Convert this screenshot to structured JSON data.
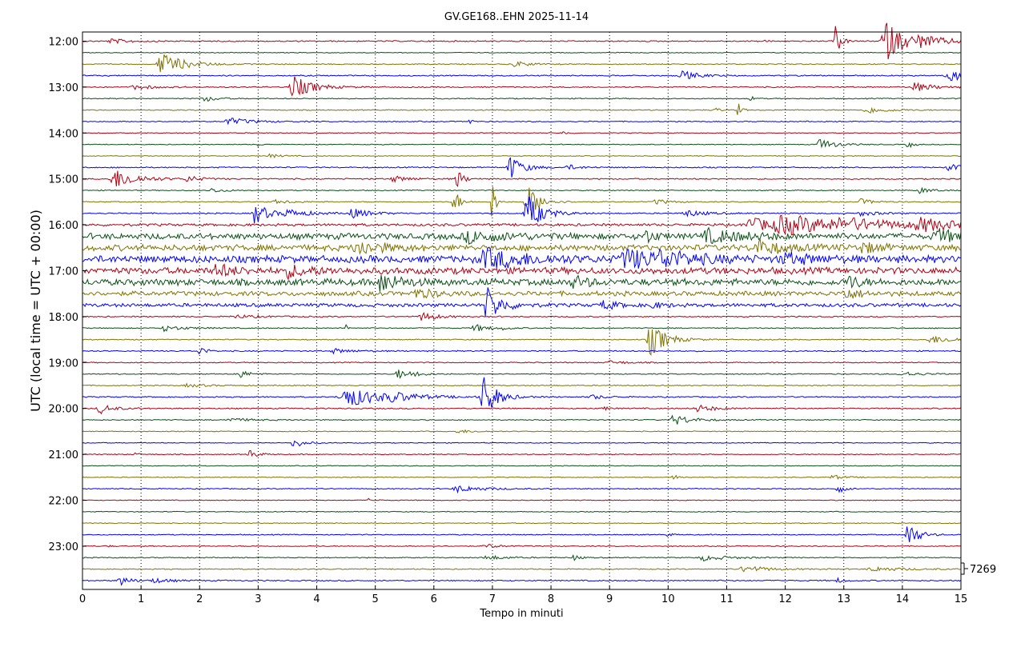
{
  "chart_data": {
    "type": "line",
    "title": "GV.GE168..EHN 2025-11-14",
    "xlabel": "Tempo in minuti",
    "ylabel": "UTC (local time = UTC + 00:00)",
    "xlim": [
      0,
      15
    ],
    "x_ticks": [
      "0",
      "1",
      "2",
      "3",
      "4",
      "5",
      "6",
      "7",
      "8",
      "9",
      "10",
      "11",
      "12",
      "13",
      "14",
      "15"
    ],
    "y_tick_labels": [
      "12:00",
      "13:00",
      "14:00",
      "15:00",
      "16:00",
      "17:00",
      "18:00",
      "19:00",
      "20:00",
      "21:00",
      "22:00",
      "23:00"
    ],
    "grid": "vertical dotted",
    "scale_label": "7269",
    "colors": [
      "#b00012",
      "#0b5016",
      "#7f7200",
      "#0000ff"
    ],
    "traces": [
      {
        "start": "12:00",
        "noise": 0.12,
        "events": [
          [
            0.5,
            0.4,
            0.3
          ],
          [
            12.85,
            3.2,
            0.08
          ],
          [
            13.7,
            3.8,
            0.3
          ],
          [
            14.3,
            0.7,
            0.6
          ],
          [
            11.6,
            0.5,
            0.05
          ]
        ]
      },
      {
        "start": "12:15",
        "noise": 0.08,
        "events": []
      },
      {
        "start": "12:30",
        "noise": 0.1,
        "events": [
          [
            1.35,
            2.0,
            0.35
          ],
          [
            7.4,
            0.6,
            0.2
          ]
        ]
      },
      {
        "start": "12:45",
        "noise": 0.12,
        "events": [
          [
            10.25,
            0.8,
            0.25
          ],
          [
            14.8,
            1.0,
            0.3
          ]
        ]
      },
      {
        "start": "13:00",
        "noise": 0.12,
        "events": [
          [
            3.6,
            2.0,
            0.3
          ],
          [
            14.2,
            0.8,
            0.3
          ],
          [
            0.9,
            0.4,
            0.3
          ]
        ]
      },
      {
        "start": "13:15",
        "noise": 0.1,
        "events": [
          [
            2.1,
            0.5,
            0.2
          ],
          [
            11.4,
            0.6,
            0.05
          ]
        ]
      },
      {
        "start": "13:30",
        "noise": 0.1,
        "events": [
          [
            13.4,
            0.6,
            0.3
          ],
          [
            11.2,
            1.2,
            0.05
          ],
          [
            10.8,
            0.4,
            0.1
          ]
        ]
      },
      {
        "start": "13:45",
        "noise": 0.1,
        "events": [
          [
            2.5,
            0.6,
            0.4
          ],
          [
            6.6,
            1.0,
            0.04
          ]
        ]
      },
      {
        "start": "14:00",
        "noise": 0.08,
        "events": [
          [
            8.2,
            0.3,
            0.1
          ]
        ]
      },
      {
        "start": "14:15",
        "noise": 0.08,
        "events": [
          [
            12.6,
            1.0,
            0.25
          ],
          [
            14.1,
            0.7,
            0.08
          ],
          [
            3.0,
            0.3,
            0.05
          ]
        ]
      },
      {
        "start": "14:30",
        "noise": 0.08,
        "events": [
          [
            3.2,
            0.3,
            0.2
          ]
        ]
      },
      {
        "start": "14:45",
        "noise": 0.12,
        "events": [
          [
            7.3,
            2.2,
            0.2
          ],
          [
            8.3,
            0.4,
            0.2
          ],
          [
            14.8,
            0.6,
            0.2
          ]
        ]
      },
      {
        "start": "15:00",
        "noise": 0.12,
        "events": [
          [
            0.55,
            1.8,
            0.35
          ],
          [
            1.8,
            0.5,
            0.2
          ],
          [
            5.3,
            0.5,
            0.3
          ],
          [
            6.4,
            1.6,
            0.1
          ]
        ]
      },
      {
        "start": "15:15",
        "noise": 0.1,
        "events": [
          [
            2.2,
            0.4,
            0.2
          ],
          [
            14.3,
            0.5,
            0.2
          ]
        ]
      },
      {
        "start": "15:30",
        "noise": 0.1,
        "events": [
          [
            6.35,
            2.6,
            0.08
          ],
          [
            7.0,
            4.0,
            0.05
          ],
          [
            7.6,
            3.0,
            0.2
          ],
          [
            9.8,
            0.5,
            0.2
          ],
          [
            13.3,
            0.5,
            0.2
          ],
          [
            3.3,
            0.3,
            0.3
          ]
        ]
      },
      {
        "start": "15:45",
        "noise": 0.12,
        "events": [
          [
            2.95,
            2.0,
            0.2
          ],
          [
            4.6,
            0.8,
            0.3
          ],
          [
            7.6,
            3.2,
            0.25
          ],
          [
            10.3,
            0.6,
            0.3
          ],
          [
            13.3,
            0.4,
            0.3
          ],
          [
            3.5,
            0.6,
            0.4
          ]
        ]
      },
      {
        "start": "16:00",
        "noise": 0.25,
        "events": [
          [
            12.0,
            1.4,
            1.2
          ],
          [
            11.4,
            1.2,
            0.5
          ],
          [
            14.3,
            1.0,
            0.5
          ],
          [
            13.0,
            0.6,
            0.8
          ]
        ]
      },
      {
        "start": "16:15",
        "noise": 0.6,
        "events": [
          [
            9.6,
            1.2,
            0.15
          ],
          [
            10.7,
            1.0,
            0.6
          ],
          [
            14.6,
            1.0,
            0.4
          ],
          [
            6.6,
            0.9,
            0.6
          ]
        ]
      },
      {
        "start": "16:30",
        "noise": 0.6,
        "events": [
          [
            4.7,
            1.2,
            0.4
          ],
          [
            11.5,
            1.3,
            0.4
          ],
          [
            13.3,
            0.8,
            0.3
          ]
        ]
      },
      {
        "start": "16:45",
        "noise": 0.7,
        "events": [
          [
            6.9,
            1.6,
            0.7
          ],
          [
            9.3,
            1.6,
            0.6
          ],
          [
            9.9,
            1.0,
            0.5
          ],
          [
            12.0,
            0.8,
            0.5
          ]
        ]
      },
      {
        "start": "17:00",
        "noise": 0.65,
        "events": [
          [
            2.3,
            1.0,
            0.3
          ],
          [
            3.5,
            0.9,
            0.4
          ]
        ]
      },
      {
        "start": "17:15",
        "noise": 0.65,
        "events": [
          [
            5.1,
            1.6,
            0.3
          ],
          [
            8.4,
            1.0,
            0.2
          ],
          [
            13.1,
            1.2,
            0.15
          ]
        ]
      },
      {
        "start": "17:30",
        "noise": 0.45,
        "events": [
          [
            13.0,
            1.0,
            0.25
          ],
          [
            5.7,
            0.8,
            0.3
          ]
        ]
      },
      {
        "start": "17:45",
        "noise": 0.35,
        "events": [
          [
            6.9,
            3.2,
            0.22
          ],
          [
            8.9,
            0.8,
            0.2
          ],
          [
            9.7,
            0.5,
            0.2
          ]
        ]
      },
      {
        "start": "18:00",
        "noise": 0.12,
        "events": [
          [
            5.8,
            0.8,
            0.25
          ],
          [
            2.6,
            0.3,
            0.4
          ]
        ]
      },
      {
        "start": "18:15",
        "noise": 0.1,
        "events": [
          [
            1.4,
            0.5,
            0.3
          ],
          [
            6.7,
            0.7,
            0.2
          ],
          [
            4.5,
            0.8,
            0.03
          ],
          [
            7.2,
            0.3,
            0.1
          ]
        ]
      },
      {
        "start": "18:30",
        "noise": 0.1,
        "events": [
          [
            9.7,
            3.0,
            0.25
          ],
          [
            14.5,
            0.7,
            0.4
          ]
        ]
      },
      {
        "start": "18:45",
        "noise": 0.12,
        "events": [
          [
            2.0,
            0.9,
            0.1
          ],
          [
            4.3,
            0.4,
            0.3
          ]
        ]
      },
      {
        "start": "19:00",
        "noise": 0.1,
        "events": [
          [
            9.0,
            0.3,
            0.3
          ]
        ]
      },
      {
        "start": "19:15",
        "noise": 0.1,
        "events": [
          [
            2.65,
            0.9,
            0.15
          ],
          [
            5.4,
            0.9,
            0.2
          ],
          [
            5.7,
            0.7,
            0.08
          ],
          [
            14.0,
            0.4,
            0.3
          ]
        ]
      },
      {
        "start": "19:30",
        "noise": 0.1,
        "events": [
          [
            1.8,
            0.3,
            0.3
          ]
        ]
      },
      {
        "start": "19:45",
        "noise": 0.12,
        "events": [
          [
            4.5,
            1.8,
            0.6
          ],
          [
            5.3,
            0.5,
            0.4
          ],
          [
            6.85,
            4.0,
            0.2
          ],
          [
            8.7,
            0.4,
            0.2
          ]
        ]
      },
      {
        "start": "20:00",
        "noise": 0.12,
        "events": [
          [
            0.3,
            0.9,
            0.2
          ],
          [
            10.5,
            0.6,
            0.3
          ],
          [
            8.9,
            0.3,
            0.1
          ]
        ]
      },
      {
        "start": "20:15",
        "noise": 0.1,
        "events": [
          [
            10.1,
            0.9,
            0.3
          ],
          [
            2.5,
            0.3,
            0.4
          ]
        ]
      },
      {
        "start": "20:30",
        "noise": 0.08,
        "events": [
          [
            6.4,
            0.3,
            0.3
          ]
        ]
      },
      {
        "start": "20:45",
        "noise": 0.08,
        "events": [
          [
            3.6,
            1.0,
            0.15
          ]
        ]
      },
      {
        "start": "21:00",
        "noise": 0.1,
        "events": [
          [
            2.85,
            0.9,
            0.12
          ],
          [
            0.9,
            0.3,
            0.05
          ]
        ]
      },
      {
        "start": "21:15",
        "noise": 0.08,
        "events": []
      },
      {
        "start": "21:30",
        "noise": 0.08,
        "events": [
          [
            10.1,
            0.4,
            0.1
          ],
          [
            12.8,
            0.4,
            0.2
          ]
        ]
      },
      {
        "start": "21:45",
        "noise": 0.1,
        "events": [
          [
            6.4,
            0.6,
            0.4
          ],
          [
            12.9,
            0.9,
            0.1
          ]
        ]
      },
      {
        "start": "22:00",
        "noise": 0.08,
        "events": [
          [
            4.9,
            0.3,
            0.1
          ]
        ]
      },
      {
        "start": "22:15",
        "noise": 0.08,
        "events": []
      },
      {
        "start": "22:30",
        "noise": 0.08,
        "events": []
      },
      {
        "start": "22:45",
        "noise": 0.1,
        "events": [
          [
            14.1,
            2.6,
            0.15
          ],
          [
            10.0,
            0.5,
            0.05
          ]
        ]
      },
      {
        "start": "23:00",
        "noise": 0.1,
        "events": [
          [
            6.9,
            0.4,
            0.2
          ],
          [
            0.4,
            0.3,
            0.05
          ]
        ]
      },
      {
        "start": "23:15",
        "noise": 0.1,
        "events": [
          [
            8.4,
            0.6,
            0.08
          ],
          [
            10.6,
            0.5,
            0.4
          ],
          [
            6.9,
            0.4,
            0.3
          ]
        ]
      },
      {
        "start": "23:30",
        "noise": 0.1,
        "events": [
          [
            11.3,
            0.6,
            0.4
          ],
          [
            13.5,
            0.4,
            0.5
          ]
        ]
      },
      {
        "start": "23:45",
        "noise": 0.12,
        "events": [
          [
            0.65,
            0.9,
            0.15
          ],
          [
            1.2,
            0.4,
            0.3
          ],
          [
            12.9,
            0.4,
            0.1
          ]
        ]
      }
    ]
  }
}
